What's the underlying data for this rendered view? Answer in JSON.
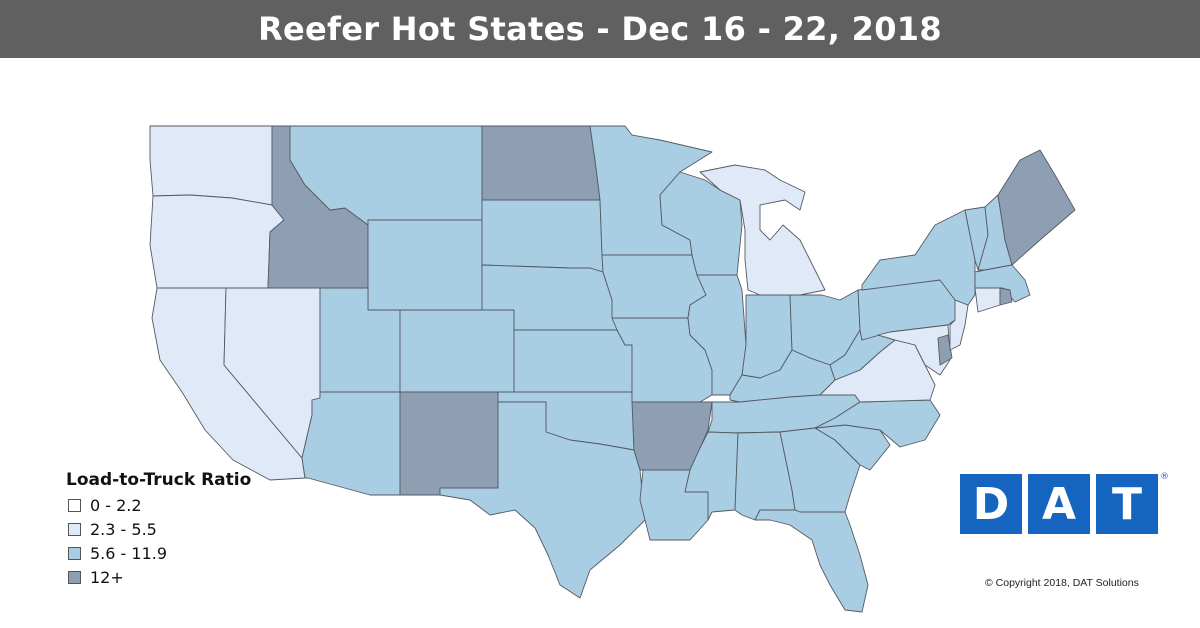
{
  "title": "Reefer Hot States - Dec 16 - 22, 2018",
  "legend": {
    "title": "Load-to-Truck Ratio",
    "items": [
      {
        "label": "0 - 2.2",
        "color": "#ffffff"
      },
      {
        "label": "2.3 - 5.5",
        "color": "#dfe9f7"
      },
      {
        "label": "5.6 - 11.9",
        "color": "#a9cde3"
      },
      {
        "label": "12+",
        "color": "#8e9fb3"
      }
    ]
  },
  "state_levels": {
    "WA": "2.3 - 5.5",
    "OR": "2.3 - 5.5",
    "CA": "2.3 - 5.5",
    "NV": "2.3 - 5.5",
    "MI": "2.3 - 5.5",
    "VA": "2.3 - 5.5",
    "NJ": "2.3 - 5.5",
    "CT": "2.3 - 5.5",
    "MD": "2.3 - 5.5",
    "ID": "12+",
    "ND": "12+",
    "NM": "12+",
    "AR": "12+",
    "ME": "12+",
    "DE": "12+",
    "RI": "12+",
    "MT": "5.6 - 11.9",
    "WY": "5.6 - 11.9",
    "UT": "5.6 - 11.9",
    "AZ": "5.6 - 11.9",
    "CO": "5.6 - 11.9",
    "SD": "5.6 - 11.9",
    "NE": "5.6 - 11.9",
    "KS": "5.6 - 11.9",
    "OK": "5.6 - 11.9",
    "TX": "5.6 - 11.9",
    "MN": "5.6 - 11.9",
    "IA": "5.6 - 11.9",
    "MO": "5.6 - 11.9",
    "LA": "5.6 - 11.9",
    "WI": "5.6 - 11.9",
    "IL": "5.6 - 11.9",
    "IN": "5.6 - 11.9",
    "OH": "5.6 - 11.9",
    "KY": "5.6 - 11.9",
    "TN": "5.6 - 11.9",
    "MS": "5.6 - 11.9",
    "AL": "5.6 - 11.9",
    "GA": "5.6 - 11.9",
    "FL": "5.6 - 11.9",
    "SC": "5.6 - 11.9",
    "NC": "5.6 - 11.9",
    "WV": "5.6 - 11.9",
    "PA": "5.6 - 11.9",
    "NY": "5.6 - 11.9",
    "VT": "5.6 - 11.9",
    "NH": "5.6 - 11.9",
    "MA": "5.6 - 11.9"
  },
  "logo": {
    "letters": [
      "D",
      "A",
      "T"
    ],
    "color": "#1565c0",
    "registered": "®"
  },
  "copyright": "© Copyright 2018, DAT Solutions"
}
